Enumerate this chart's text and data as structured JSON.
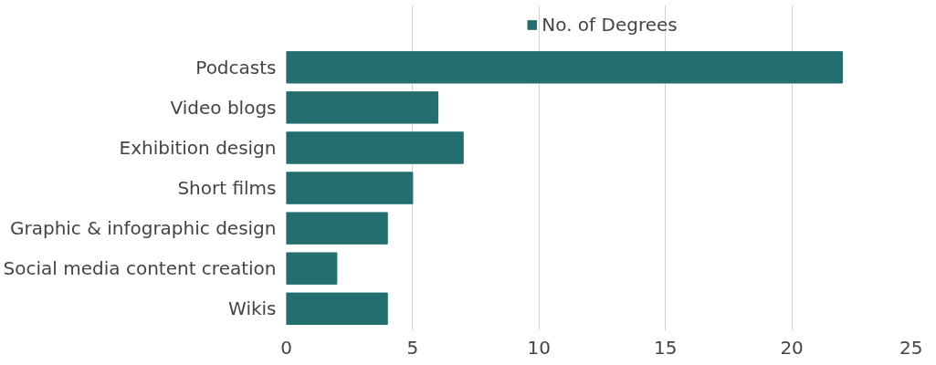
{
  "chart_data": {
    "type": "bar",
    "orientation": "horizontal",
    "categories": [
      "Podcasts",
      "Video blogs",
      "Exhibition design",
      "Short films",
      "Graphic & infographic design",
      "Social media content creation",
      "Wikis"
    ],
    "series": [
      {
        "name": "No. of Degrees",
        "color": "#236e6e",
        "values": [
          22,
          6,
          7,
          5,
          4,
          2,
          4
        ]
      }
    ],
    "xlim": [
      0,
      25
    ],
    "xticks": [
      0,
      5,
      10,
      15,
      20,
      25
    ],
    "grid": "x",
    "legend": "top"
  }
}
